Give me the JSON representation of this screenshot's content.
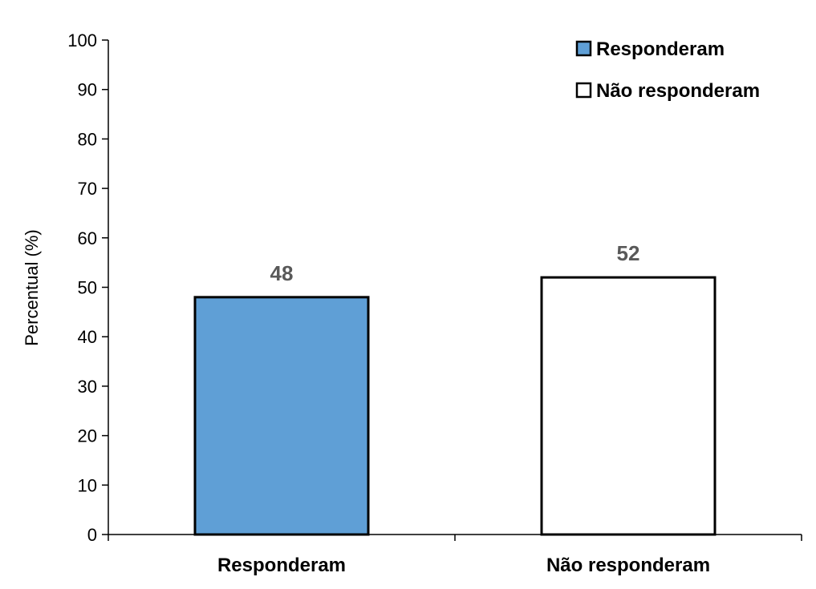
{
  "chart_data": {
    "type": "bar",
    "title": "",
    "xlabel": "",
    "ylabel": "Percentual (%)",
    "ylim": [
      0,
      100
    ],
    "yticks": [
      0,
      10,
      20,
      30,
      40,
      50,
      60,
      70,
      80,
      90,
      100
    ],
    "grid": false,
    "legend_position": "top-right",
    "categories": [
      "Responderam",
      "Não responderam"
    ],
    "values": [
      48,
      52
    ],
    "data_labels": [
      "48",
      "52"
    ],
    "bar_colors": [
      "#5f9fd6",
      "#ffffff"
    ],
    "bar_outline_color": "#000000",
    "legend": [
      {
        "label": "Responderam",
        "color": "#5f9fd6"
      },
      {
        "label": "Não responderam",
        "color": "#ffffff"
      }
    ]
  }
}
